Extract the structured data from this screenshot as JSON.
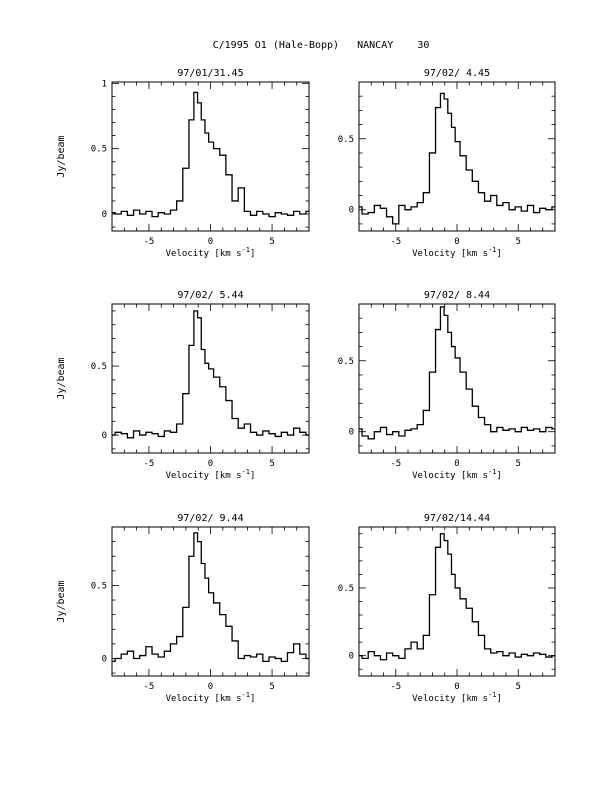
{
  "figure": {
    "title": "C/1995 O1 (Hale-Bopp)   NANCAY    30"
  },
  "chart_data": [
    {
      "type": "line",
      "title": "97/01/31.45",
      "xlabel": "Velocity [km s",
      "xlabel_sup": "-1",
      "xlabel_close": "]",
      "ylabel": "Jy/beam",
      "xlim": [
        -8,
        8
      ],
      "ylim": [
        -0.13,
        1.01
      ],
      "xticks": [
        -5,
        0,
        5
      ],
      "yticks": [
        0,
        0.5,
        1
      ],
      "series": [
        {
          "x": [
            -8,
            -7.5,
            -7,
            -6.5,
            -6,
            -5.5,
            -5,
            -4.5,
            -4,
            -3.5,
            -3,
            -2.5,
            -2,
            -1.5,
            -1.2,
            -0.9,
            -0.6,
            -0.3,
            0,
            0.5,
            1,
            1.5,
            2,
            2.5,
            3,
            3.5,
            4,
            4.5,
            5,
            5.5,
            6,
            6.5,
            7,
            7.5,
            8
          ],
          "y": [
            0.01,
            0.0,
            0.02,
            -0.01,
            0.03,
            0.0,
            0.02,
            -0.02,
            0.01,
            0.0,
            0.03,
            0.1,
            0.35,
            0.72,
            0.93,
            0.85,
            0.72,
            0.62,
            0.55,
            0.5,
            0.45,
            0.3,
            0.1,
            0.2,
            0.02,
            -0.01,
            0.02,
            0.0,
            -0.02,
            0.01,
            0.0,
            -0.01,
            0.02,
            0.0,
            0.02
          ]
        }
      ]
    },
    {
      "type": "line",
      "title": "97/02/ 4.45",
      "xlabel": "Velocity [km s",
      "xlabel_sup": "-1",
      "xlabel_close": "]",
      "ylabel": "",
      "xlim": [
        -8,
        8
      ],
      "ylim": [
        -0.15,
        0.9
      ],
      "xticks": [
        -5,
        0,
        5
      ],
      "yticks": [
        0,
        0.5
      ],
      "series": [
        {
          "x": [
            -8,
            -7.5,
            -7,
            -6.5,
            -6,
            -5.5,
            -5,
            -4.5,
            -4,
            -3.5,
            -3,
            -2.5,
            -2,
            -1.5,
            -1.2,
            -0.9,
            -0.6,
            -0.3,
            0,
            0.5,
            1,
            1.5,
            2,
            2.5,
            3,
            3.5,
            4,
            4.5,
            5,
            5.5,
            6,
            6.5,
            7,
            7.5,
            8
          ],
          "y": [
            0.02,
            -0.03,
            -0.02,
            0.03,
            0.01,
            -0.05,
            -0.1,
            0.03,
            0.0,
            0.02,
            0.05,
            0.12,
            0.4,
            0.72,
            0.82,
            0.78,
            0.68,
            0.58,
            0.48,
            0.38,
            0.28,
            0.2,
            0.12,
            0.06,
            0.1,
            0.03,
            0.05,
            0.0,
            0.02,
            -0.01,
            0.03,
            -0.02,
            0.01,
            0.0,
            0.02
          ]
        }
      ]
    },
    {
      "type": "line",
      "title": "97/02/ 5.44",
      "xlabel": "Velocity [km s",
      "xlabel_sup": "-1",
      "xlabel_close": "]",
      "ylabel": "Jy/beam",
      "xlim": [
        -8,
        8
      ],
      "ylim": [
        -0.13,
        0.95
      ],
      "xticks": [
        -5,
        0,
        5
      ],
      "yticks": [
        0,
        0.5
      ],
      "series": [
        {
          "x": [
            -8,
            -7.5,
            -7,
            -6.5,
            -6,
            -5.5,
            -5,
            -4.5,
            -4,
            -3.5,
            -3,
            -2.5,
            -2,
            -1.5,
            -1.2,
            -0.9,
            -0.6,
            -0.3,
            0,
            0.5,
            1,
            1.5,
            2,
            2.5,
            3,
            3.5,
            4,
            4.5,
            5,
            5.5,
            6,
            6.5,
            7,
            7.5,
            8
          ],
          "y": [
            0.0,
            0.02,
            0.01,
            -0.02,
            0.03,
            0.0,
            0.02,
            0.01,
            -0.01,
            0.03,
            0.02,
            0.08,
            0.3,
            0.65,
            0.9,
            0.85,
            0.62,
            0.52,
            0.48,
            0.42,
            0.35,
            0.25,
            0.12,
            0.05,
            0.08,
            0.02,
            0.0,
            0.03,
            0.01,
            -0.01,
            0.02,
            0.0,
            0.05,
            0.02,
            0.0
          ]
        }
      ]
    },
    {
      "type": "line",
      "title": "97/02/ 8.44",
      "xlabel": "Velocity [km s",
      "xlabel_sup": "-1",
      "xlabel_close": "]",
      "ylabel": "",
      "xlim": [
        -8,
        8
      ],
      "ylim": [
        -0.15,
        0.9
      ],
      "xticks": [
        -5,
        0,
        5
      ],
      "yticks": [
        0,
        0.5
      ],
      "series": [
        {
          "x": [
            -8,
            -7.5,
            -7,
            -6.5,
            -6,
            -5.5,
            -5,
            -4.5,
            -4,
            -3.5,
            -3,
            -2.5,
            -2,
            -1.5,
            -1.2,
            -0.9,
            -0.6,
            -0.3,
            0,
            0.5,
            1,
            1.5,
            2,
            2.5,
            3,
            3.5,
            4,
            4.5,
            5,
            5.5,
            6,
            6.5,
            7,
            7.5,
            8
          ],
          "y": [
            0.02,
            -0.03,
            -0.05,
            0.0,
            0.03,
            -0.02,
            0.0,
            -0.03,
            0.01,
            0.02,
            0.05,
            0.15,
            0.42,
            0.72,
            0.88,
            0.82,
            0.7,
            0.6,
            0.52,
            0.42,
            0.3,
            0.18,
            0.1,
            0.05,
            0.0,
            0.03,
            0.01,
            0.02,
            0.0,
            0.03,
            0.01,
            0.02,
            0.0,
            0.03,
            0.02
          ]
        }
      ]
    },
    {
      "type": "line",
      "title": "97/02/ 9.44",
      "xlabel": "Velocity [km s",
      "xlabel_sup": "-1",
      "xlabel_close": "]",
      "ylabel": "Jy/beam",
      "xlim": [
        -8,
        8
      ],
      "ylim": [
        -0.12,
        0.9
      ],
      "xticks": [
        -5,
        0,
        5
      ],
      "yticks": [
        0,
        0.5
      ],
      "series": [
        {
          "x": [
            -8,
            -7.5,
            -7,
            -6.5,
            -6,
            -5.5,
            -5,
            -4.5,
            -4,
            -3.5,
            -3,
            -2.5,
            -2,
            -1.5,
            -1.2,
            -0.9,
            -0.6,
            -0.3,
            0,
            0.5,
            1,
            1.5,
            2,
            2.5,
            3,
            3.5,
            4,
            4.5,
            5,
            5.5,
            6,
            6.5,
            7,
            7.5,
            8
          ],
          "y": [
            -0.02,
            0.0,
            0.03,
            0.05,
            0.0,
            0.02,
            0.08,
            0.03,
            0.01,
            0.05,
            0.1,
            0.15,
            0.35,
            0.7,
            0.86,
            0.8,
            0.65,
            0.55,
            0.45,
            0.38,
            0.3,
            0.22,
            0.12,
            0.0,
            0.02,
            0.01,
            0.03,
            -0.02,
            0.01,
            0.0,
            -0.02,
            0.04,
            0.1,
            0.03,
            0.0
          ]
        }
      ]
    },
    {
      "type": "line",
      "title": "97/02/14.44",
      "xlabel": "Velocity [km s",
      "xlabel_sup": "-1",
      "xlabel_close": "]",
      "ylabel": "",
      "xlim": [
        -8,
        8
      ],
      "ylim": [
        -0.15,
        0.95
      ],
      "xticks": [
        -5,
        0,
        5
      ],
      "yticks": [
        0,
        0.5
      ],
      "series": [
        {
          "x": [
            -8,
            -7.5,
            -7,
            -6.5,
            -6,
            -5.5,
            -5,
            -4.5,
            -4,
            -3.5,
            -3,
            -2.5,
            -2,
            -1.5,
            -1.2,
            -0.9,
            -0.6,
            -0.3,
            0,
            0.5,
            1,
            1.5,
            2,
            2.5,
            3,
            3.5,
            4,
            4.5,
            5,
            5.5,
            6,
            6.5,
            7,
            7.5,
            8
          ],
          "y": [
            0.0,
            -0.02,
            0.03,
            0.0,
            -0.03,
            0.02,
            0.0,
            -0.02,
            0.05,
            0.1,
            0.05,
            0.15,
            0.45,
            0.8,
            0.9,
            0.85,
            0.75,
            0.6,
            0.5,
            0.42,
            0.35,
            0.25,
            0.15,
            0.05,
            0.02,
            0.03,
            0.0,
            0.02,
            -0.01,
            0.01,
            0.0,
            0.02,
            0.01,
            -0.01,
            0.0
          ]
        }
      ]
    }
  ]
}
